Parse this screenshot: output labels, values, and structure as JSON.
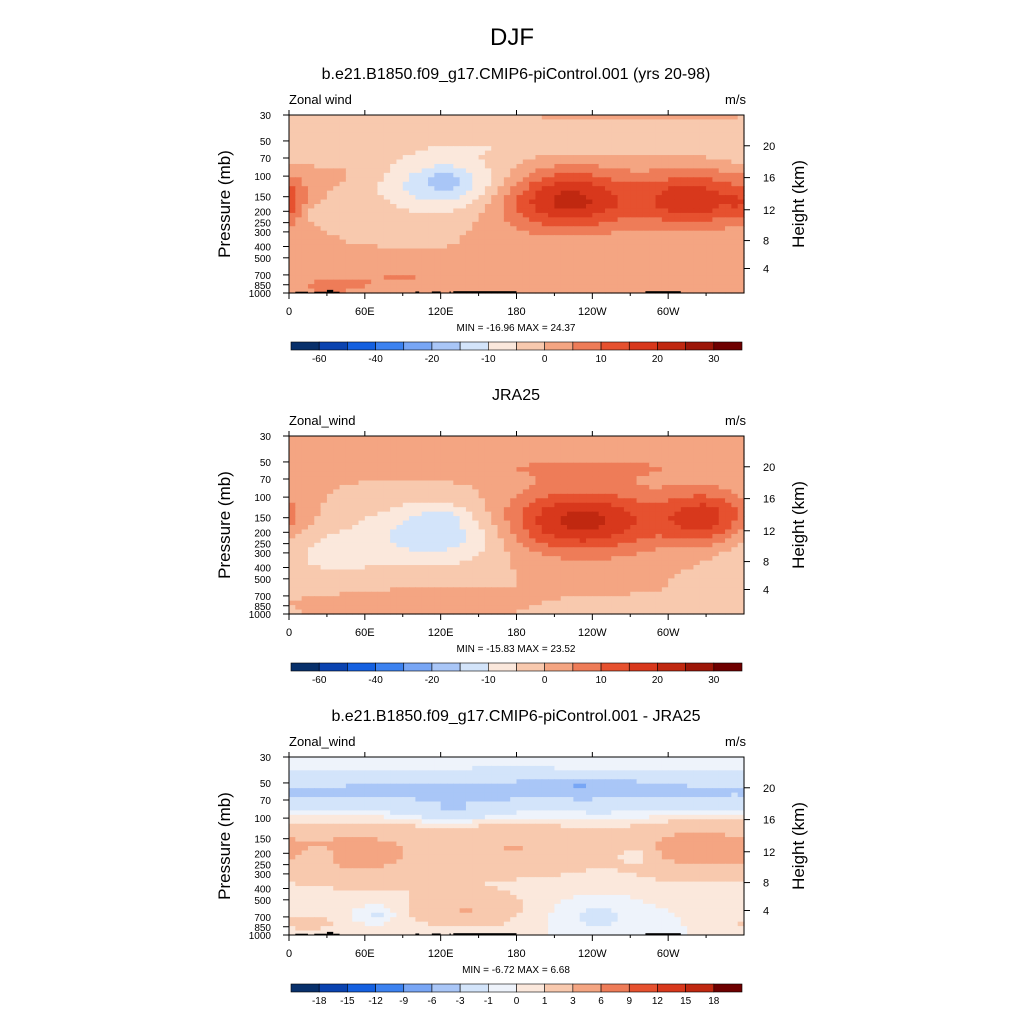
{
  "figure": {
    "title": "DJF"
  },
  "palettes": {
    "abs": [
      "#08306b",
      "#0a43b0",
      "#1460e0",
      "#3c82f0",
      "#78a6f5",
      "#a9c6f7",
      "#d3e4fa",
      "#fbe8dc",
      "#f8c9ae",
      "#f4a582",
      "#ee7c58",
      "#e6512f",
      "#d8381c",
      "#c02810",
      "#9c1608",
      "#6e0000"
    ],
    "diff": [
      "#08306b",
      "#0a43b0",
      "#1460e0",
      "#3c82f0",
      "#78a6f5",
      "#a9c6f7",
      "#d3e4fa",
      "#eef3fb",
      "#fbe8dc",
      "#f8c9ae",
      "#f4a582",
      "#ee7c58",
      "#e6512f",
      "#d8381c",
      "#c02810",
      "#6e0000"
    ]
  },
  "chart_data": [
    {
      "type": "contour",
      "title": "b.e21.B1850.f09_g17.CMIP6-piControl.001 (yrs 20-98)",
      "left_label": "Zonal wind",
      "right_label": "m/s",
      "ylabel": "Pressure (mb)",
      "y2label": "Height (km)",
      "stats": "MIN = -16.96  MAX =  24.37",
      "x_ticks": [
        "0",
        "60E",
        "120E",
        "180",
        "120W",
        "60W"
      ],
      "y_ticks": [
        "30",
        "50",
        "70",
        "100",
        "150",
        "200",
        "250",
        "300",
        "400",
        "500",
        "700",
        "850",
        "1000"
      ],
      "y2_ticks": [
        "20",
        "16",
        "12",
        "8",
        "4"
      ],
      "levels": [
        -70,
        -60,
        -50,
        -40,
        -30,
        -20,
        -15,
        -10,
        -5,
        0,
        5,
        10,
        15,
        20,
        25,
        30,
        35
      ],
      "colorbar_labels": [
        "-60",
        "-40",
        "-20",
        "-10",
        "0",
        "10",
        "20",
        "30"
      ],
      "topography": true,
      "xlim": [
        0,
        355
      ],
      "blobs": [
        {
          "lon": 40,
          "p": 100,
          "amp": 1.5,
          "w": 30,
          "h": 0.15
        },
        {
          "lon": 125,
          "p": 120,
          "amp": -15,
          "w": 38,
          "h": 0.4
        },
        {
          "lon": 123,
          "p": 105,
          "amp": -4,
          "w": 12,
          "h": 0.15
        },
        {
          "lon": 220,
          "p": 160,
          "amp": 22,
          "w": 40,
          "h": 0.42
        },
        {
          "lon": 320,
          "p": 160,
          "amp": 19,
          "w": 28,
          "h": 0.38
        },
        {
          "lon": 0,
          "p": 170,
          "amp": 8,
          "w": 10,
          "h": 0.3
        },
        {
          "lon": 22,
          "p": 210,
          "amp": -4,
          "w": 12,
          "h": 0.15
        },
        {
          "lon": 95,
          "p": 720,
          "amp": 5,
          "w": 50,
          "h": 0.2
        },
        {
          "lon": 30,
          "p": 900,
          "amp": 5,
          "w": 25,
          "h": 0.15
        },
        {
          "lon": 200,
          "p": 55,
          "amp": -4,
          "w": 90,
          "h": 0.15
        },
        {
          "lon": 25,
          "p": 70,
          "amp": -3,
          "w": 40,
          "h": 0.1
        }
      ]
    },
    {
      "type": "contour",
      "title": "JRA25",
      "left_label": "Zonal_wind",
      "right_label": "m/s",
      "ylabel": "Pressure (mb)",
      "y2label": "Height (km)",
      "stats": "MIN = -15.83  MAX =  23.52",
      "x_ticks": [
        "0",
        "60E",
        "120E",
        "180",
        "120W",
        "60W"
      ],
      "y_ticks": [
        "30",
        "50",
        "70",
        "100",
        "150",
        "200",
        "250",
        "300",
        "400",
        "500",
        "700",
        "850",
        "1000"
      ],
      "y2_ticks": [
        "20",
        "16",
        "12",
        "8",
        "4"
      ],
      "levels": [
        -70,
        -60,
        -50,
        -40,
        -30,
        -20,
        -15,
        -10,
        -5,
        0,
        5,
        10,
        15,
        20,
        25,
        30,
        35
      ],
      "colorbar_labels": [
        "-60",
        "-40",
        "-20",
        "-10",
        "0",
        "10",
        "20",
        "30"
      ],
      "topography": false,
      "xlim": [
        0,
        355
      ],
      "blobs": [
        {
          "lon": 120,
          "p": 200,
          "amp": -14,
          "w": 38,
          "h": 0.45
        },
        {
          "lon": 120,
          "p": 150,
          "amp": -3,
          "w": 10,
          "h": 0.1
        },
        {
          "lon": 230,
          "p": 160,
          "amp": 22,
          "w": 45,
          "h": 0.45
        },
        {
          "lon": 330,
          "p": 150,
          "amp": 17,
          "w": 25,
          "h": 0.38
        },
        {
          "lon": 240,
          "p": 55,
          "amp": 5,
          "w": 100,
          "h": 0.2
        },
        {
          "lon": 30,
          "p": 300,
          "amp": -6,
          "w": 40,
          "h": 0.45
        },
        {
          "lon": 95,
          "p": 800,
          "amp": 5,
          "w": 45,
          "h": 0.15
        },
        {
          "lon": 270,
          "p": 950,
          "amp": -5,
          "w": 40,
          "h": 0.12
        }
      ]
    },
    {
      "type": "contour",
      "title": "b.e21.B1850.f09_g17.CMIP6-piControl.001 - JRA25",
      "left_label": "Zonal_wind",
      "right_label": "m/s",
      "ylabel": "Pressure (mb)",
      "y2label": "Height (km)",
      "stats": "MIN =  -6.72  MAX =   6.68",
      "x_ticks": [
        "0",
        "60E",
        "120E",
        "180",
        "120W",
        "60W"
      ],
      "y_ticks": [
        "30",
        "50",
        "70",
        "100",
        "150",
        "200",
        "250",
        "300",
        "400",
        "500",
        "700",
        "850",
        "1000"
      ],
      "y2_ticks": [
        "20",
        "16",
        "12",
        "8",
        "4"
      ],
      "levels": [
        -21,
        -18,
        -15,
        -12,
        -9,
        -6,
        -3,
        -1,
        0,
        1,
        3,
        6,
        9,
        12,
        15,
        18,
        21
      ],
      "colorbar_labels": [
        "-18",
        "-15",
        "-12",
        "-9",
        "-6",
        "-3",
        "-1",
        "0",
        "1",
        "3",
        "6",
        "9",
        "12",
        "15",
        "18"
      ],
      "topography": true,
      "xlim": [
        0,
        355
      ],
      "blobs": [
        {
          "lon": 175,
          "p": 60,
          "amp": -3.5,
          "w": 400,
          "h": 0.3
        },
        {
          "lon": 230,
          "p": 52,
          "amp": -3,
          "w": 25,
          "h": 0.07
        },
        {
          "lon": 130,
          "p": 90,
          "amp": -2,
          "w": 25,
          "h": 0.12
        },
        {
          "lon": 60,
          "p": 200,
          "amp": 3.5,
          "w": 40,
          "h": 0.45
        },
        {
          "lon": 180,
          "p": 180,
          "amp": 3,
          "w": 45,
          "h": 0.4
        },
        {
          "lon": 320,
          "p": 180,
          "amp": 4,
          "w": 40,
          "h": 0.4
        },
        {
          "lon": 140,
          "p": 600,
          "amp": 3,
          "w": 30,
          "h": 0.25
        },
        {
          "lon": 22,
          "p": 210,
          "amp": -1.5,
          "w": 8,
          "h": 0.12
        },
        {
          "lon": 275,
          "p": 210,
          "amp": -2,
          "w": 10,
          "h": 0.12
        },
        {
          "lon": 245,
          "p": 700,
          "amp": -1.5,
          "w": 20,
          "h": 0.2
        },
        {
          "lon": 70,
          "p": 650,
          "amp": -1.5,
          "w": 10,
          "h": 0.1
        },
        {
          "lon": 15,
          "p": 800,
          "amp": 2,
          "w": 15,
          "h": 0.1
        }
      ]
    }
  ]
}
